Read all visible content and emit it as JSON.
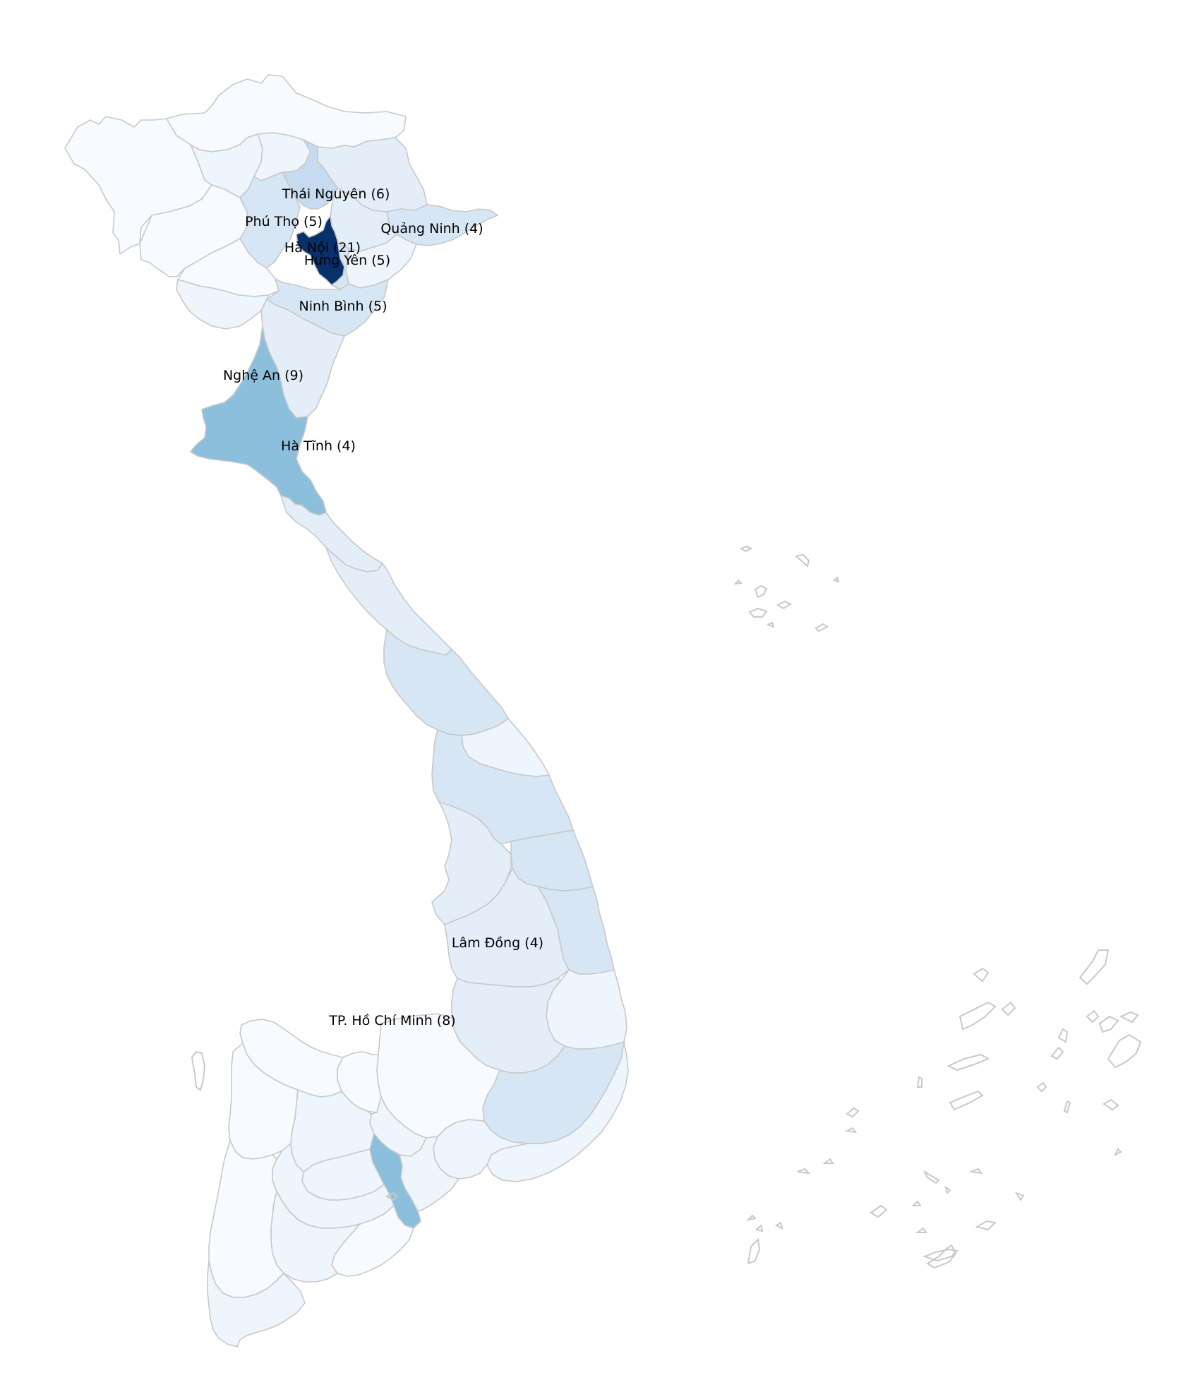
{
  "map": {
    "colors": {
      "border": "#c8c8c8",
      "background": "#ffffff",
      "scale": [
        "#f7fbff",
        "#eef5fd",
        "#e3eef9",
        "#d6e6f4",
        "#c6dbef",
        "#8bbfdc",
        "#08306b"
      ]
    },
    "labels": [
      {
        "province": "Thái Nguyên",
        "count": 6,
        "text": "Thái Nguyên (6)"
      },
      {
        "province": "Phú Thọ",
        "count": 5,
        "text": "Phú Thọ (5)"
      },
      {
        "province": "Quảng Ninh",
        "count": 4,
        "text": "Quảng Ninh (4)"
      },
      {
        "province": "Hà Nội",
        "count": 21,
        "text": "Hà Nội (21)"
      },
      {
        "province": "Hưng Yên",
        "count": 5,
        "text": "Hưng Yên (5)"
      },
      {
        "province": "Ninh Bình",
        "count": 5,
        "text": "Ninh Bình (5)"
      },
      {
        "province": "Nghệ An",
        "count": 9,
        "text": "Nghệ An (9)"
      },
      {
        "province": "Hà Tĩnh",
        "count": 4,
        "text": "Hà Tĩnh (4)"
      },
      {
        "province": "Lâm Đồng",
        "count": 4,
        "text": "Lâm Đồng (4)"
      },
      {
        "province": "TP. Hồ Chí Minh",
        "count": 8,
        "text": "TP. Hồ Chí Minh (8)"
      }
    ]
  }
}
